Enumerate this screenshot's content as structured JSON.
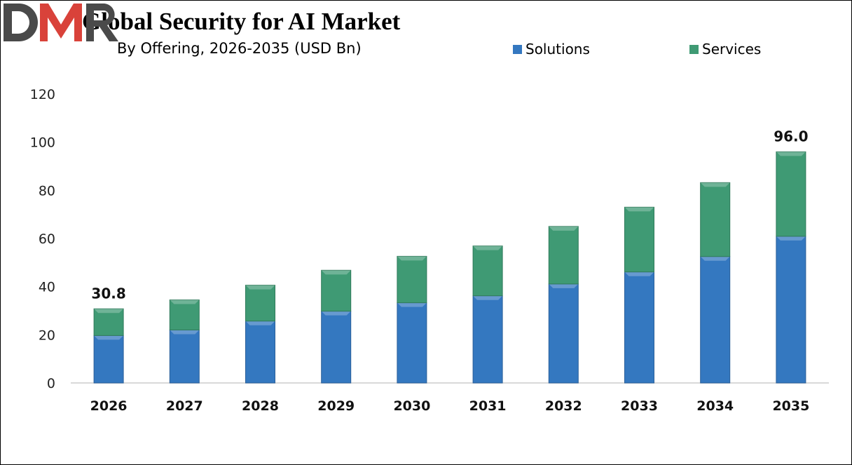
{
  "chart_data": {
    "type": "bar",
    "stacked": true,
    "title": "Global Security for AI Market",
    "subtitle": "By Offering, 2026-2035 (USD Bn)",
    "xlabel": "",
    "ylabel": "",
    "categories": [
      "2026",
      "2027",
      "2028",
      "2029",
      "2030",
      "2031",
      "2032",
      "2033",
      "2034",
      "2035"
    ],
    "series": [
      {
        "name": "Solutions",
        "color": "#3478c0",
        "values": [
          19.7,
          22.0,
          25.7,
          29.8,
          33.3,
          36.2,
          41.1,
          46.1,
          52.5,
          60.9
        ]
      },
      {
        "name": "Services",
        "color": "#3f9a74",
        "values": [
          11.1,
          12.5,
          14.9,
          17.0,
          19.3,
          20.7,
          23.9,
          26.9,
          30.7,
          35.1
        ]
      }
    ],
    "annotations": [
      {
        "category": "2026",
        "text": "30.8"
      },
      {
        "category": "2035",
        "text": "96.0"
      }
    ],
    "ylim": [
      0,
      120
    ],
    "yticks": [
      "0",
      "20",
      "40",
      "60",
      "80",
      "100",
      "120"
    ],
    "grid": false,
    "legend_position": "top-right"
  },
  "logo": {
    "text": "DMR",
    "colors": [
      "#4a4a4a",
      "#d9423a"
    ]
  }
}
